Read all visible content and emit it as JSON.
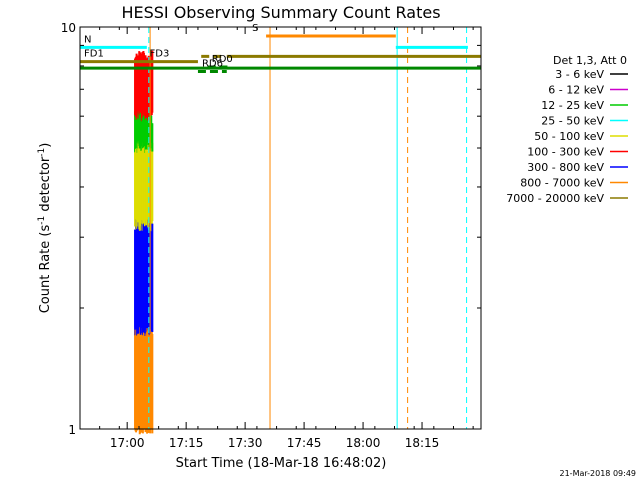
{
  "chart_data": {
    "type": "line",
    "title": "HESSI Observing Summary Count Rates",
    "xlabel": "Start Time (18-Mar-18 16:48:02)",
    "ylabel_parts": [
      "Count Rate (s",
      "-1",
      " detector",
      "-1",
      ")"
    ],
    "y_scale": "log",
    "ylim": [
      1,
      10
    ],
    "y_tick_labels": [
      "1",
      "10"
    ],
    "x_tick_labels": [
      "17:00",
      "17:15",
      "17:30",
      "17:45",
      "18:00",
      "18:15"
    ],
    "x_ticks_min": [
      720,
      1620,
      2520,
      3420,
      4320,
      5220
    ],
    "xlim_min": [
      0,
      6120
    ],
    "footer": "21-Mar-2018 09:49",
    "legend": {
      "header": "Det 1,3, Att 0",
      "entries": [
        {
          "label": "3 - 6 keV",
          "color": "#000000"
        },
        {
          "label": "6 - 12 keV",
          "color": "#cc00cc"
        },
        {
          "label": "12 - 25 keV",
          "color": "#00cc00"
        },
        {
          "label": "25 - 50 keV",
          "color": "#00ffff"
        },
        {
          "label": "50 - 100 keV",
          "color": "#dddd00"
        },
        {
          "label": "100 - 300 keV",
          "color": "#ff0000"
        },
        {
          "label": "300 - 800 keV",
          "color": "#0000ff"
        },
        {
          "label": "800 - 7000 keV",
          "color": "#ff8800"
        },
        {
          "label": "7000 - 20000 keV",
          "color": "#8b7a00"
        }
      ]
    },
    "flag_bars": [
      {
        "label": "N",
        "color": "#00ffff",
        "y": 8.9,
        "x": [
          0,
          1020
        ],
        "dashed": false
      },
      {
        "label": "S",
        "color": "#ff8800",
        "y": 9.5,
        "x": [
          2840,
          4820
        ],
        "dashed": false
      },
      {
        "label": "",
        "color": "#00ffff",
        "y": 8.9,
        "x": [
          4820,
          5920
        ],
        "dashed": false
      },
      {
        "label": "FD1",
        "color": "#8b7a00",
        "y": 8.2,
        "x": [
          0,
          1000
        ],
        "dashed": false
      },
      {
        "label": "FD3",
        "color": "#8b7a00",
        "y": 8.2,
        "x": [
          1000,
          1800
        ],
        "dashed": false
      },
      {
        "label": "",
        "color": "#8b7a00",
        "y": 8.45,
        "x": [
          1850,
          2200
        ],
        "dashed": true
      },
      {
        "label": "",
        "color": "#8b7a00",
        "y": 8.45,
        "x": [
          2240,
          6120
        ],
        "dashed": false
      },
      {
        "label": "RD0",
        "color": "#008800",
        "y": 7.95,
        "x": [
          1950,
          2250
        ],
        "dashed": true
      },
      {
        "label": "RD6",
        "color": "#008800",
        "y": 7.75,
        "x": [
          1800,
          2240
        ],
        "dashed": true
      },
      {
        "label": "",
        "color": "#008800",
        "y": 7.9,
        "x": [
          0,
          6120
        ],
        "dashed": false
      }
    ],
    "vertical_lines": [
      {
        "x": 0,
        "color": "#00ffff",
        "dashed": false
      },
      {
        "x": 1070,
        "color": "#ff8800",
        "dashed": false
      },
      {
        "x": 2900,
        "color": "#ff8800",
        "dashed": false
      },
      {
        "x": 4840,
        "color": "#00ffff",
        "dashed": false
      },
      {
        "x": 5000,
        "color": "#ff8800",
        "dashed": true
      },
      {
        "x": 5900,
        "color": "#00ffff",
        "dashed": true
      },
      {
        "x": 1050,
        "color": "#00ffff",
        "dashed": true
      }
    ],
    "burst": {
      "x_start": 840,
      "x_end": 1110,
      "bands": [
        {
          "color": "#ff8800",
          "y": [
            1,
            1.75
          ]
        },
        {
          "color": "#0000ff",
          "y": [
            1.75,
            3.2
          ]
        },
        {
          "color": "#dddd00",
          "y": [
            3.2,
            5.0
          ]
        },
        {
          "color": "#00cc00",
          "y": [
            5.0,
            6.0
          ]
        },
        {
          "color": "#ff0000",
          "y": [
            6.0,
            8.4
          ]
        }
      ]
    }
  }
}
